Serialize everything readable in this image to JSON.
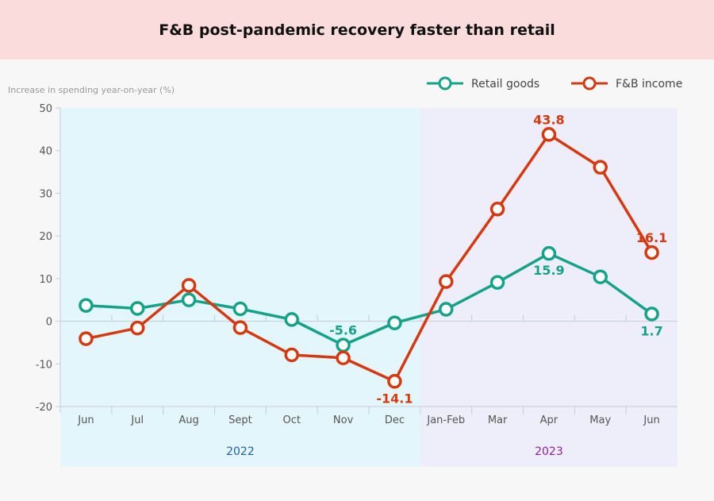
{
  "chart_data": {
    "type": "line",
    "title": "F&B post-pandemic recovery faster than retail",
    "ylabel": "Increase in spending year-on-year (%)",
    "xlabel": "",
    "ylim": [
      -20,
      50
    ],
    "yticks": [
      -20,
      -10,
      0,
      10,
      20,
      30,
      40,
      50
    ],
    "categories": [
      "Jun",
      "Jul",
      "Aug",
      "Sept",
      "Oct",
      "Nov",
      "Dec",
      "Jan-Feb",
      "Mar",
      "Apr",
      "May",
      "Jun"
    ],
    "year_groups": [
      {
        "label": "2022",
        "from": 0,
        "to": 6,
        "color": "#e3f6fb",
        "text_color": "#1f5fb0"
      },
      {
        "label": "2023",
        "from": 7,
        "to": 11,
        "color": "#eeeefb",
        "text_color": "#8a1fa6"
      }
    ],
    "legend_position": "top-right",
    "grid": false,
    "series": [
      {
        "name": "Retail goods",
        "color": "#14a389",
        "values": [
          3.7,
          3.0,
          5.0,
          2.9,
          0.4,
          -5.6,
          -0.4,
          2.8,
          9.1,
          15.9,
          10.4,
          1.7
        ],
        "labels": {
          "5": "-5.6",
          "9": "15.9",
          "11": "1.7"
        }
      },
      {
        "name": "F&B income",
        "color": "#d6390f",
        "values": [
          -4.1,
          -1.6,
          8.4,
          -1.5,
          -7.9,
          -8.6,
          -14.1,
          9.3,
          26.3,
          43.8,
          36.1,
          16.1
        ],
        "labels": {
          "6": "-14.1",
          "9": "43.8",
          "11": "16.1"
        }
      }
    ]
  }
}
